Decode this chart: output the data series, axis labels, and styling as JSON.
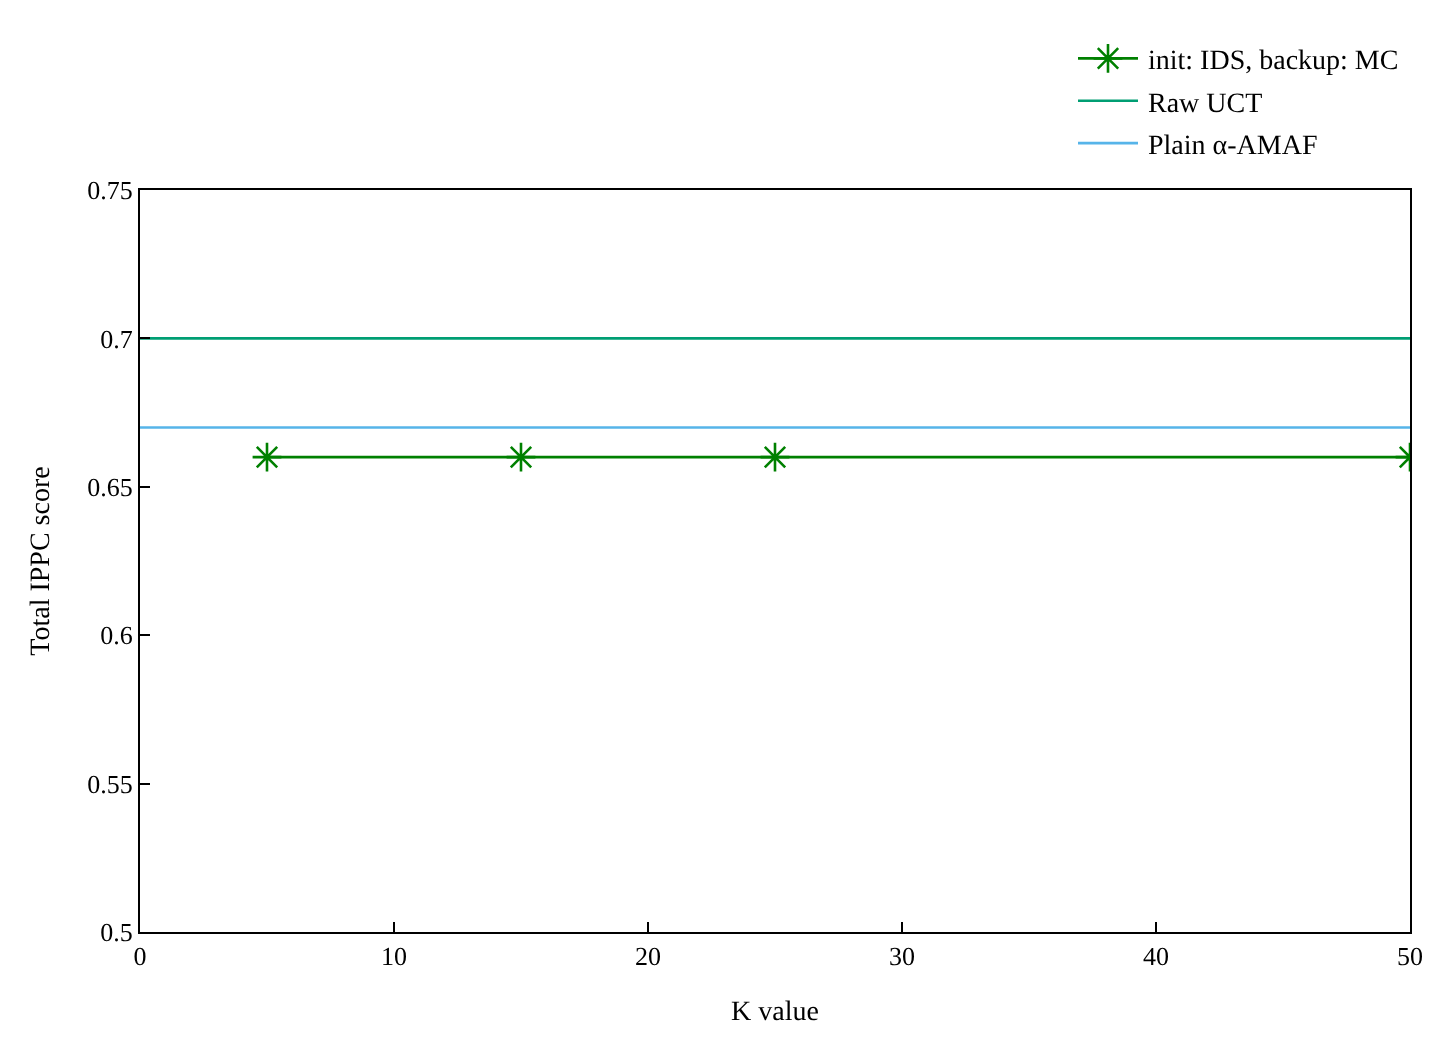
{
  "chart_data": {
    "type": "line",
    "xlabel": "K value",
    "ylabel": "Total IPPC score",
    "xlim": [
      0,
      50
    ],
    "xticks": [
      0,
      10,
      20,
      30,
      40,
      50
    ],
    "ylim": [
      0.5,
      0.75
    ],
    "yticks": [
      0.5,
      0.55,
      0.6,
      0.65,
      0.7,
      0.75
    ],
    "legend": "top right",
    "series": [
      {
        "name": "init: IDS, backup: MC",
        "color": "#008000",
        "x": [
          5,
          15,
          25,
          50
        ],
        "values": [
          0.66,
          0.66,
          0.66,
          0.66
        ],
        "marker": "cross"
      },
      {
        "name": "Raw UCT",
        "color": "#009e73",
        "x": [
          0,
          50
        ],
        "values": [
          0.7,
          0.7
        ],
        "marker": "none"
      },
      {
        "name": "Plain α-AMAF",
        "color": "#56b4e9",
        "x": [
          0,
          50
        ],
        "values": [
          0.67,
          0.67
        ],
        "marker": "none"
      }
    ]
  }
}
